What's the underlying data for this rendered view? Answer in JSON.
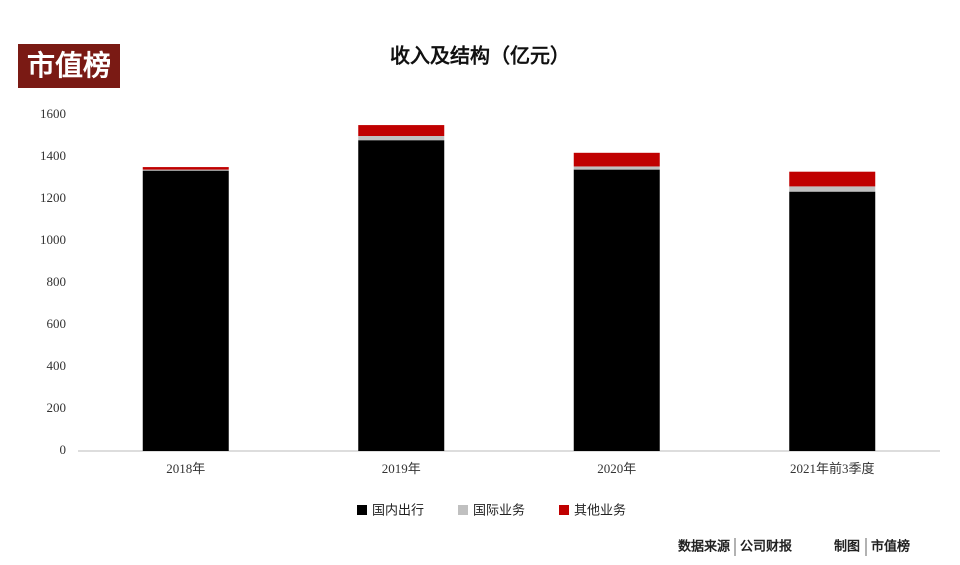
{
  "logo": "市值榜",
  "footer": {
    "source_label": "数据来源",
    "source": "公司财报",
    "credit_label": "制图",
    "credit": "市值榜"
  },
  "chart_data": {
    "type": "stacked_bar",
    "title": "收入及结构（亿元）",
    "categories": [
      "2018年",
      "2019年",
      "2020年",
      "2021年前3季度"
    ],
    "series": [
      {
        "name": "国内出行",
        "color": "#000000",
        "values": [
          1335,
          1480,
          1340,
          1235
        ]
      },
      {
        "name": "国际业务",
        "color": "#c0c0c0",
        "values": [
          5,
          20,
          15,
          25
        ]
      },
      {
        "name": "其他业务",
        "color": "#c00000",
        "values": [
          12,
          52,
          65,
          70
        ]
      }
    ],
    "ylim": [
      0,
      1600
    ],
    "yticks": [
      0,
      200,
      400,
      600,
      800,
      1000,
      1200,
      1400,
      1600
    ],
    "grid": false,
    "legend": "bottom"
  }
}
